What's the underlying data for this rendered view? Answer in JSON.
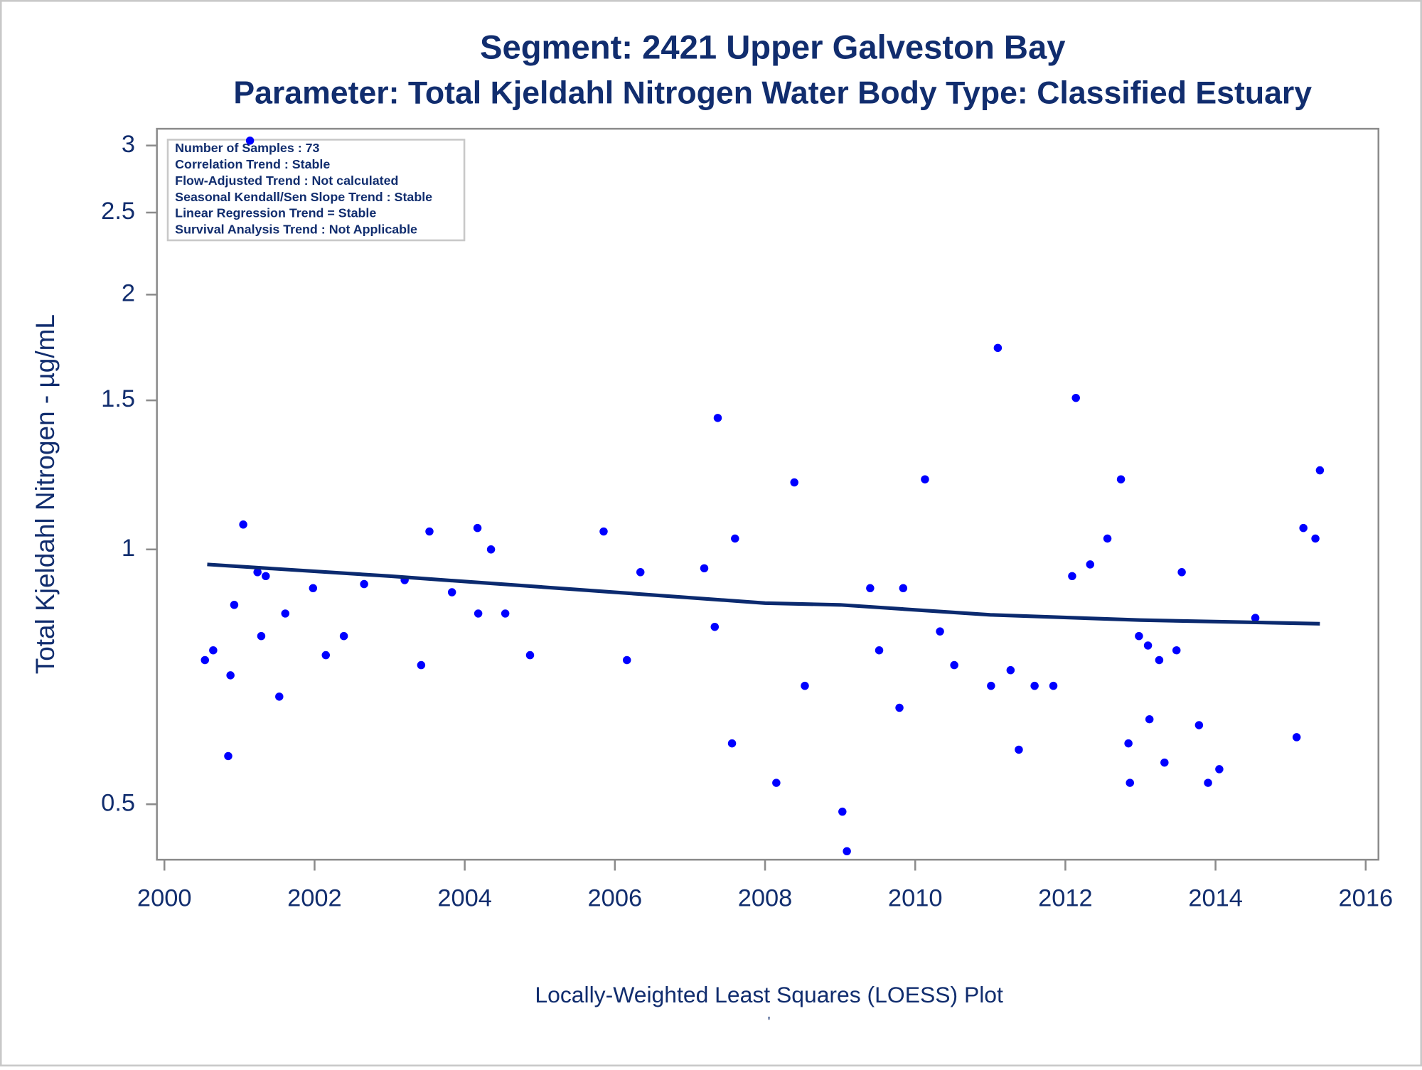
{
  "chart_data": {
    "type": "scatter",
    "title": "Segment: 2421  Upper Galveston Bay",
    "subtitle": "Parameter: Total Kjeldahl Nitrogen   Water Body Type: Classified Estuary",
    "y_label": "Total Kjeldahl Nitrogen -  µg/mL",
    "caption": "Locally-Weighted Least Squares (LOESS) Plot",
    "footnote": "'",
    "annotations": [
      "Number of Samples : 73",
      "Correlation Trend : Stable",
      "Flow-Adjusted Trend : Not calculated",
      "Seasonal Kendall/Sen Slope Trend : Stable",
      "Linear Regression Trend = Stable",
      "Survival Analysis Trend : Not Applicable"
    ],
    "xlim": [
      1999.9,
      2016.17
    ],
    "xticks": [
      2000,
      2002,
      2004,
      2006,
      2008,
      2010,
      2012,
      2014,
      2016
    ],
    "ylim": [
      0.43,
      3.14
    ],
    "yticks": [
      0.5,
      1,
      1.5,
      2,
      2.5,
      3
    ],
    "ylog": true,
    "color": "#0000ff",
    "x": [
      2000.54,
      2000.65,
      2000.85,
      2000.88,
      2000.93,
      2001.05,
      2001.14,
      2001.24,
      2001.29,
      2001.35,
      2001.53,
      2001.61,
      2001.98,
      2002.15,
      2002.39,
      2002.66,
      2003.2,
      2003.42,
      2003.53,
      2003.83,
      2004.17,
      2004.18,
      2004.35,
      2004.54,
      2004.87,
      2005.85,
      2006.16,
      2006.34,
      2007.19,
      2007.33,
      2007.37,
      2007.56,
      2007.6,
      2008.15,
      2008.39,
      2008.53,
      2009.03,
      2009.09,
      2009.4,
      2009.52,
      2009.79,
      2009.84,
      2010.13,
      2010.33,
      2010.52,
      2011.01,
      2011.1,
      2011.27,
      2011.38,
      2011.59,
      2011.84,
      2012.09,
      2012.14,
      2012.33,
      2012.56,
      2012.74,
      2012.84,
      2012.86,
      2012.98,
      2013.1,
      2013.12,
      2013.25,
      2013.32,
      2013.48,
      2013.55,
      2013.78,
      2013.9,
      2014.05,
      2014.53,
      2015.08,
      2015.17,
      2015.33,
      2015.39
    ],
    "values": [
      0.74,
      0.76,
      0.57,
      0.71,
      0.86,
      1.07,
      3.04,
      0.94,
      0.79,
      0.93,
      0.67,
      0.84,
      0.9,
      0.75,
      0.79,
      0.91,
      0.92,
      0.73,
      1.05,
      0.89,
      1.06,
      0.84,
      1.0,
      0.84,
      0.75,
      1.05,
      0.74,
      0.94,
      0.95,
      0.81,
      1.43,
      0.59,
      1.03,
      0.53,
      1.2,
      0.69,
      0.49,
      0.44,
      0.9,
      0.76,
      0.65,
      0.9,
      1.21,
      0.8,
      0.73,
      0.69,
      1.73,
      0.72,
      0.58,
      0.69,
      0.69,
      0.93,
      1.51,
      0.96,
      1.03,
      1.21,
      0.59,
      0.53,
      0.79,
      0.77,
      0.63,
      0.74,
      0.56,
      0.76,
      0.94,
      0.62,
      0.53,
      0.55,
      0.83,
      0.6,
      1.06,
      1.03,
      1.24
    ],
    "loess": {
      "color": "#0b2a6f",
      "x": [
        2000.57,
        2003,
        2006,
        2008,
        2009,
        2011,
        2013,
        2015.39
      ],
      "values": [
        0.96,
        0.93,
        0.89,
        0.864,
        0.86,
        0.837,
        0.825,
        0.817
      ]
    }
  }
}
